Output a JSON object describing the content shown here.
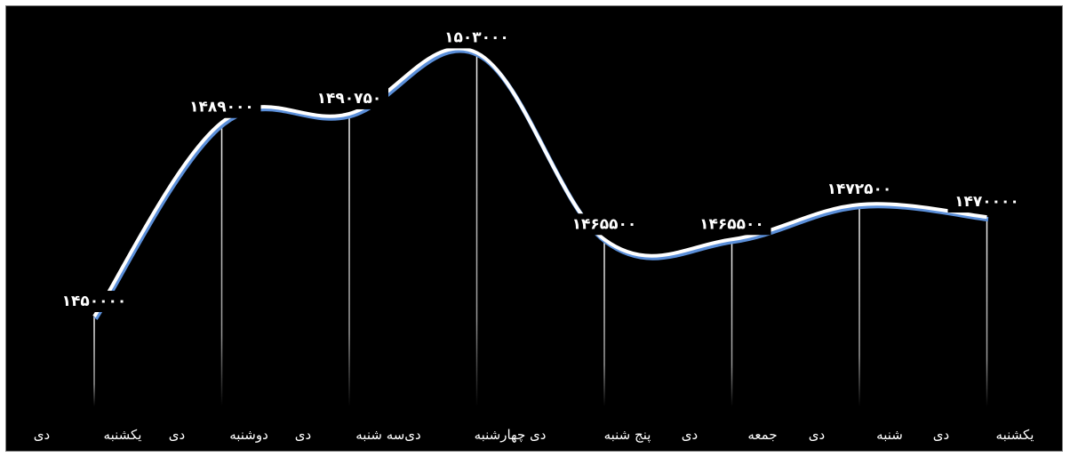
{
  "chart_data": {
    "type": "line",
    "title": "",
    "xlabel": "",
    "ylabel": "",
    "categories": [
      "یکشنبه دی",
      "دوشنبه دی",
      "سه شنبه دی",
      "چهارشنبه دی",
      "پنج شنبه دی",
      "جمعه دی",
      "شنبه دی",
      "یکشنبه دی"
    ],
    "values": [
      1450000,
      1489000,
      1490750,
      1503000,
      1465500,
      1465500,
      1472500,
      1470000
    ],
    "value_labels": [
      "۱۴۵۰۰۰۰",
      "۱۴۸۹۰۰۰",
      "۱۴۹۰۷۵۰",
      "۱۵۰۳۰۰۰",
      "۱۴۶۵۵۰۰",
      "۱۴۶۵۵۰۰",
      "۱۴۷۲۵۰۰",
      "۱۴۷۰۰۰۰"
    ],
    "category_text_row": [
      "دی",
      "یکشنبه",
      "دی",
      "دوشنبه",
      "دی",
      "دی‌سه شنبه",
      "دی چهارشنبه",
      "پنج شنبه",
      "دی",
      "جمعه",
      "دی",
      "شنبه",
      "دی",
      "یکشنبه"
    ],
    "ylim": [
      1445000,
      1507000
    ],
    "grid": false,
    "legend": "none",
    "colors": {
      "background": "#000000",
      "line": "#ffffff",
      "line_shadow": "#5b8fd9",
      "drop_line": "#ffffff",
      "text": "#ffffff"
    }
  }
}
